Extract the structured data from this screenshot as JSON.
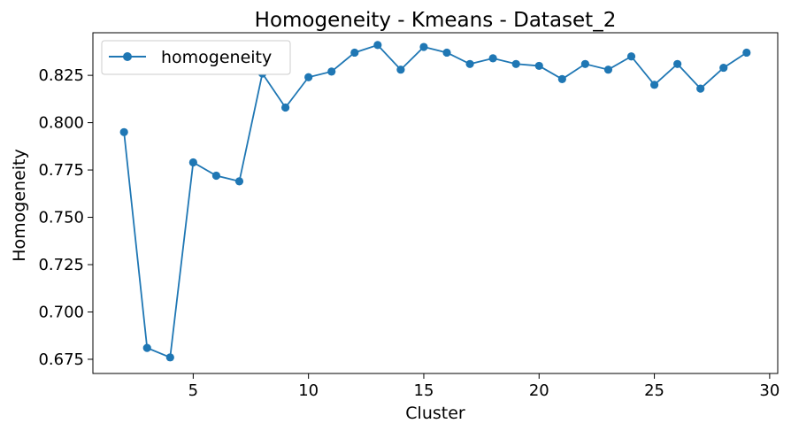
{
  "chart_data": {
    "type": "line",
    "title": "Homogeneity - Kmeans - Dataset_2",
    "xlabel": "Cluster",
    "ylabel": "Homogeneity",
    "xlim": [
      0.65,
      30.35
    ],
    "ylim": [
      0.6675,
      0.8475
    ],
    "xticks": [
      5,
      10,
      15,
      20,
      25,
      30
    ],
    "yticks": [
      0.675,
      0.7,
      0.725,
      0.75,
      0.775,
      0.8,
      0.825
    ],
    "xtick_labels": [
      "5",
      "10",
      "15",
      "20",
      "25",
      "30"
    ],
    "ytick_labels": [
      "0.675",
      "0.700",
      "0.725",
      "0.750",
      "0.775",
      "0.800",
      "0.825"
    ],
    "legend_position": "top-left",
    "grid": false,
    "series": [
      {
        "name": "homogeneity",
        "color": "#1f77b4",
        "marker": "circle",
        "x": [
          2,
          3,
          4,
          5,
          6,
          7,
          8,
          9,
          10,
          11,
          12,
          13,
          14,
          15,
          16,
          17,
          18,
          19,
          20,
          21,
          22,
          23,
          24,
          25,
          26,
          27,
          28,
          29
        ],
        "y": [
          0.795,
          0.681,
          0.676,
          0.779,
          0.772,
          0.769,
          0.826,
          0.808,
          0.824,
          0.827,
          0.837,
          0.841,
          0.828,
          0.84,
          0.837,
          0.831,
          0.834,
          0.831,
          0.83,
          0.823,
          0.831,
          0.828,
          0.835,
          0.82,
          0.831,
          0.818,
          0.829,
          0.837
        ]
      }
    ]
  }
}
